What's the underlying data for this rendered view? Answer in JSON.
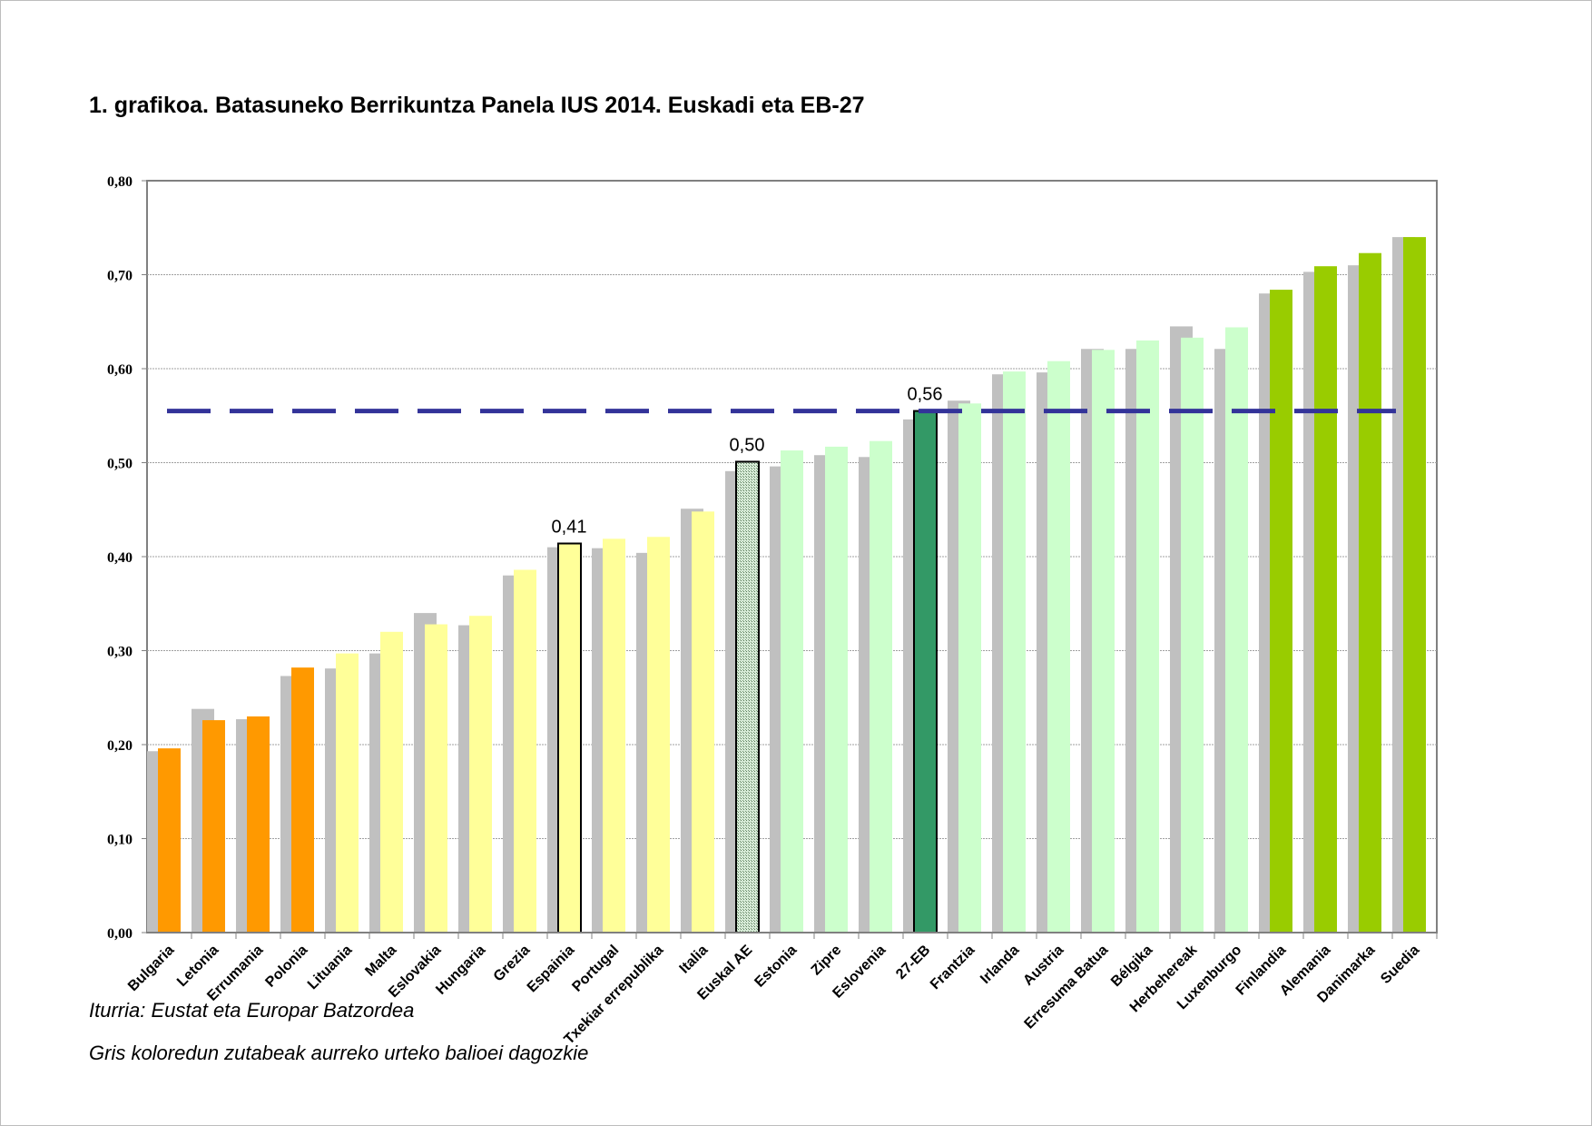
{
  "chart_data": {
    "type": "bar",
    "title": "1. grafikoa. Batasuneko Berrikuntza Panela IUS 2014. Euskadi eta EB-27",
    "xlabel": "",
    "ylabel": "",
    "ylim": [
      0,
      0.8
    ],
    "yticks": [
      "0,00",
      "0,10",
      "0,20",
      "0,30",
      "0,40",
      "0,50",
      "0,60",
      "0,70",
      "0,80"
    ],
    "grid": true,
    "categories": [
      "Bulgaria",
      "Letonia",
      "Errumania",
      "Polonia",
      "Lituania",
      "Malta",
      "Eslovakia",
      "Hungaria",
      "Grezia",
      "Espainia",
      "Portugal",
      "Txekiar errepublika",
      "Italia",
      "Euskal AE",
      "Estonia",
      "Zipre",
      "Eslovenia",
      "27-EB",
      "Frantzia",
      "Irlanda",
      "Austria",
      "Erresuma Batua",
      "Bélgika",
      "Herbehereak",
      "Luxenburgo",
      "Finlandia",
      "Alemania",
      "Danimarka",
      "Suedia"
    ],
    "series": [
      {
        "values": [
          0.193,
          0.238,
          0.227,
          0.273,
          0.281,
          0.297,
          0.34,
          0.327,
          0.38,
          0.41,
          0.409,
          0.404,
          0.451,
          0.491,
          0.496,
          0.508,
          0.506,
          0.546,
          0.566,
          0.594,
          0.596,
          0.621,
          0.621,
          0.645,
          0.621,
          0.68,
          0.703,
          0.71,
          0.74
        ],
        "color": "#C0C0C0"
      },
      {
        "values": [
          0.196,
          0.226,
          0.23,
          0.282,
          0.297,
          0.32,
          0.328,
          0.337,
          0.386,
          0.414,
          0.419,
          0.421,
          0.448,
          0.501,
          0.513,
          0.517,
          0.523,
          0.555,
          0.563,
          0.597,
          0.608,
          0.62,
          0.63,
          0.633,
          0.644,
          0.684,
          0.709,
          0.723,
          0.74
        ],
        "colors": [
          "#FF9900",
          "#FF9900",
          "#FF9900",
          "#FF9900",
          "#FFFF99",
          "#FFFF99",
          "#FFFF99",
          "#FFFF99",
          "#FFFF99",
          "#FFFF99",
          "#FFFF99",
          "#FFFF99",
          "#FFFF99",
          "#B8D8B8",
          "#CCFFCC",
          "#CCFFCC",
          "#CCFFCC",
          "#339966",
          "#CCFFCC",
          "#CCFFCC",
          "#CCFFCC",
          "#CCFFCC",
          "#CCFFCC",
          "#CCFFCC",
          "#CCFFCC",
          "#99CC00",
          "#99CC00",
          "#99CC00",
          "#99CC00"
        ],
        "outlined": [
          "Espainia",
          "Euskal AE",
          "27-EB"
        ],
        "hatched": [
          "Euskal AE"
        ]
      }
    ],
    "reference_line": {
      "value": 0.555,
      "color": "#333399",
      "style": "dashed"
    },
    "annotations": [
      {
        "category": "Espainia",
        "text": "0,41"
      },
      {
        "category": "Euskal AE",
        "text": "0,50"
      },
      {
        "category": "27-EB",
        "text": "0,56"
      }
    ]
  },
  "footer": {
    "source": "Iturria: Eustat eta Europar Batzordea",
    "note": "Gris koloredun zutabeak aurreko urteko balioei dagozkie"
  }
}
